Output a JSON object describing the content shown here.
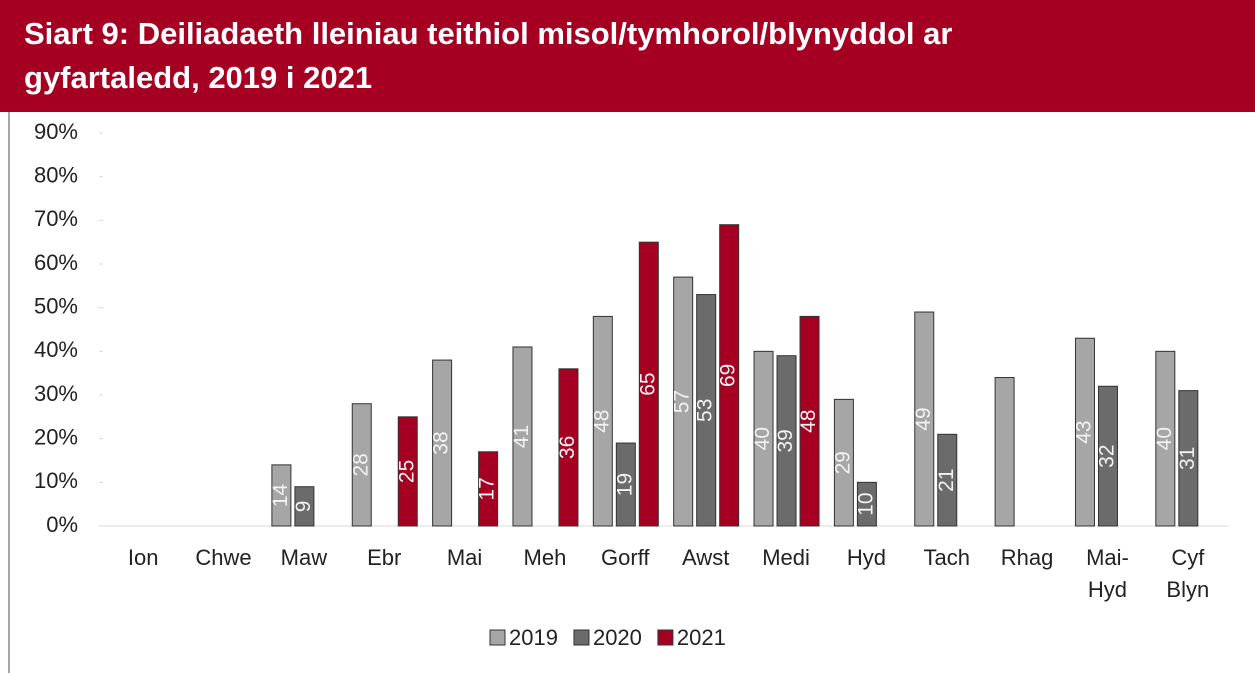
{
  "chart_data": {
    "type": "bar",
    "title": "Siart 9: Deiliadaeth lleiniau teithiol misol/tymhorol/blynyddol ar gyfartaledd, 2019 i 2021",
    "categories": [
      "Ion",
      "Chwe",
      "Maw",
      "Ebr",
      "Mai",
      "Meh",
      "Gorff",
      "Awst",
      "Medi",
      "Hyd",
      "Tach",
      "Rhag",
      "Mai-Hyd",
      "Cyf Blyn"
    ],
    "series": [
      {
        "name": "2019",
        "color": "#a6a6a6",
        "values": [
          null,
          null,
          14,
          28,
          38,
          41,
          48,
          57,
          40,
          29,
          49,
          34,
          43,
          40
        ],
        "value_labels": [
          null,
          null,
          "14",
          "28",
          "38",
          "41",
          "48",
          "57",
          "40",
          "29",
          "49",
          null,
          "43",
          "40"
        ]
      },
      {
        "name": "2020",
        "color": "#6b6b6b",
        "values": [
          null,
          null,
          9,
          null,
          null,
          null,
          19,
          53,
          39,
          10,
          21,
          null,
          32,
          31
        ]
      },
      {
        "name": "2021",
        "color": "#a50021",
        "values": [
          null,
          null,
          null,
          25,
          17,
          36,
          65,
          69,
          48,
          null,
          null,
          null,
          null,
          null
        ]
      }
    ],
    "ylim": [
      0,
      90
    ],
    "yticks": [
      {
        "value": 0,
        "label": "0%"
      },
      {
        "value": 10,
        "label": "10%"
      },
      {
        "value": 20,
        "label": "20%"
      },
      {
        "value": 30,
        "label": "30%"
      },
      {
        "value": 40,
        "label": "40%"
      },
      {
        "value": 50,
        "label": "50%"
      },
      {
        "value": 60,
        "label": "60%"
      },
      {
        "value": 70,
        "label": "70%"
      },
      {
        "value": 80,
        "label": "80%"
      },
      {
        "value": 90,
        "label": "90%"
      }
    ],
    "legend": "bottom"
  }
}
